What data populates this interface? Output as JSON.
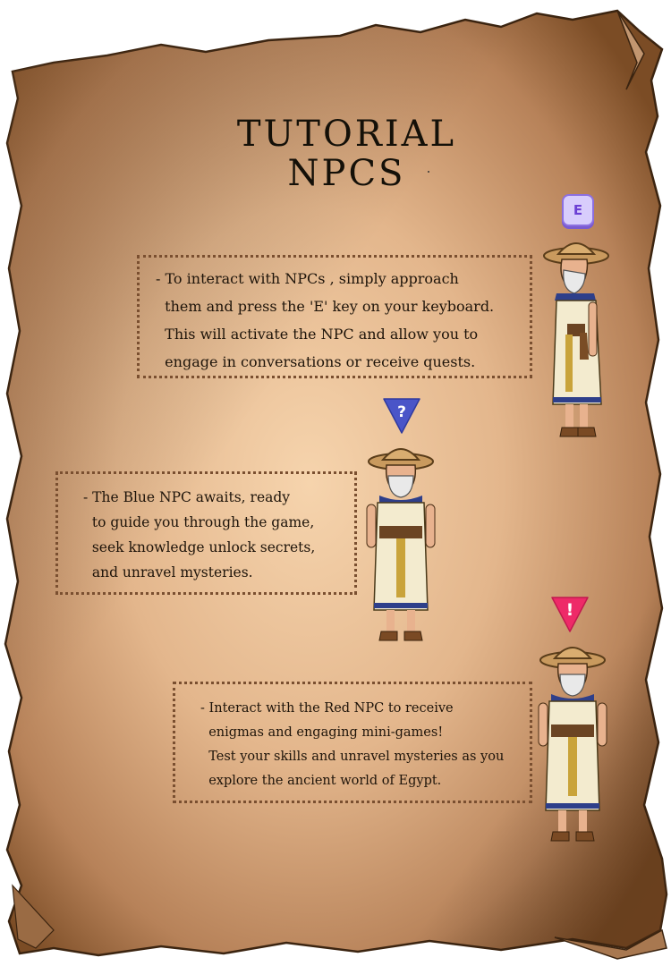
{
  "title": {
    "line1": "TUTORIAL",
    "line2": "NPCS"
  },
  "key_hint": {
    "key": "E"
  },
  "sections": [
    {
      "lines": [
        "- To interact with NPCs , simply approach",
        "  them and press the 'E' key on your keyboard.",
        "  This will activate the NPC and allow you to",
        "  engage in conversations or receive quests."
      ]
    },
    {
      "marker": "?",
      "lines": [
        "- The Blue NPC awaits, ready",
        "  to guide you through the game,",
        "  seek knowledge unlock secrets,",
        "  and unravel mysteries."
      ]
    },
    {
      "marker": "!",
      "lines": [
        "- Interact with the Red NPC to receive",
        "  enigmas and engaging mini-games!",
        "  Test your skills and unravel mysteries as you",
        "  explore the ancient world of Egypt."
      ]
    }
  ],
  "colors": {
    "parchment_light": "#f4cfa8",
    "parchment_dark": "#7a4d26",
    "blue_marker": "#4a55c8",
    "red_marker": "#ee2a68",
    "box_border": "#7a4f30"
  },
  "icons": [
    "keyboard-e-icon",
    "question-marker-icon",
    "exclamation-marker-icon",
    "egyptian-npc-figure"
  ]
}
